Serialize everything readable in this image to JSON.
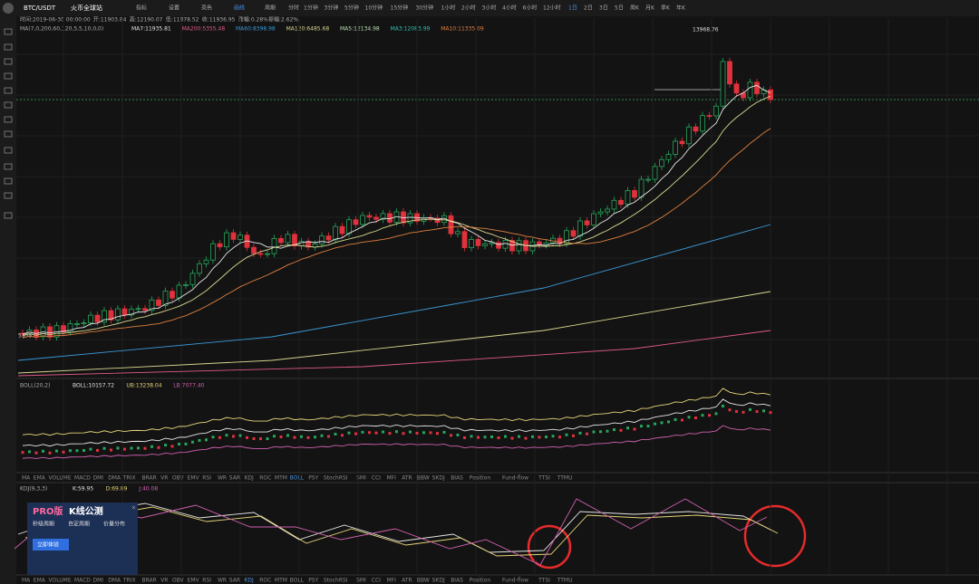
{
  "toolbar": {
    "symbol": "BTC/USDT",
    "exchange": "火币全球站",
    "buttons": [
      "指标",
      "设置",
      "亮色",
      "画线"
    ],
    "period_label": "周期",
    "periods": [
      "分时",
      "1分钟",
      "3分钟",
      "5分钟",
      "10分钟",
      "15分钟",
      "30分钟",
      "1小时",
      "2小时",
      "3小时",
      "4小时",
      "6小时",
      "12小时",
      "1日",
      "2日",
      "3日",
      "5日",
      "周K",
      "月K",
      "季K",
      "年K"
    ],
    "active_period": "1日"
  },
  "info_line": [
    "时间:2019-06-30 00:00:00",
    "开:11903.84",
    "高:12190.07",
    "低:11878.52",
    "收:11936.95",
    "涨幅:0.28%",
    "振幅:2.62%"
  ],
  "ma_line": {
    "label": "MA(7,0,200,60,120,5,5,10,0,0)",
    "items": [
      {
        "text": "MA7:11935.81",
        "color": "#e6e6e6"
      },
      {
        "text": "MA200:5355.48",
        "color": "#e05a8a"
      },
      {
        "text": "MA60:8398.98",
        "color": "#3b9ad9"
      },
      {
        "text": "MA120:6485.68",
        "color": "#d8d890"
      },
      {
        "text": "MA5:12134.98",
        "color": "#b8e0b0"
      },
      {
        "text": "MA3:12083.99",
        "color": "#2ec4b6"
      },
      {
        "text": "MA10:11335.09",
        "color": "#e08040"
      }
    ]
  },
  "price_labels": {
    "high": "13968.76",
    "low": "5355.3"
  },
  "boll_line": {
    "label": "BOLL(20,2)",
    "items": [
      {
        "text": "BOLL:10157.72",
        "color": "#e6e6e6"
      },
      {
        "text": "UB:13238.04",
        "color": "#e6d77a"
      },
      {
        "text": "LB:7077.40",
        "color": "#d060b0"
      }
    ]
  },
  "indicator_tabs": {
    "items": [
      "MA",
      "EMA",
      "VOLUME",
      "MACD",
      "DMI",
      "DMA",
      "TRIX",
      "BRAR",
      "VR",
      "OBV",
      "EMV",
      "RSI",
      "WR",
      "SAR",
      "KDJ",
      "ROC",
      "MTM",
      "BOLL",
      "PSY",
      "StochRSI",
      "SMI",
      "CCI",
      "MFI",
      "ATR",
      "BBW",
      "SKDJ",
      "BIAS",
      "Position",
      "Fund-flow",
      "TTSI",
      "TTMU"
    ],
    "active_top": "BOLL",
    "active_bottom": "KDJ"
  },
  "kdj_line": {
    "label": "KDJ(9,3,3)",
    "items": [
      {
        "text": "K:59.95",
        "color": "#e6e6e6"
      },
      {
        "text": "D:69.89",
        "color": "#e6d77a"
      },
      {
        "text": "J:40.08",
        "color": "#d060b0"
      }
    ]
  },
  "promo": {
    "title_a": "PRO版",
    "title_b": "K线公测",
    "features": [
      "秒级周期",
      "自定周期",
      "价量分布"
    ],
    "button": "立即体验"
  }
}
